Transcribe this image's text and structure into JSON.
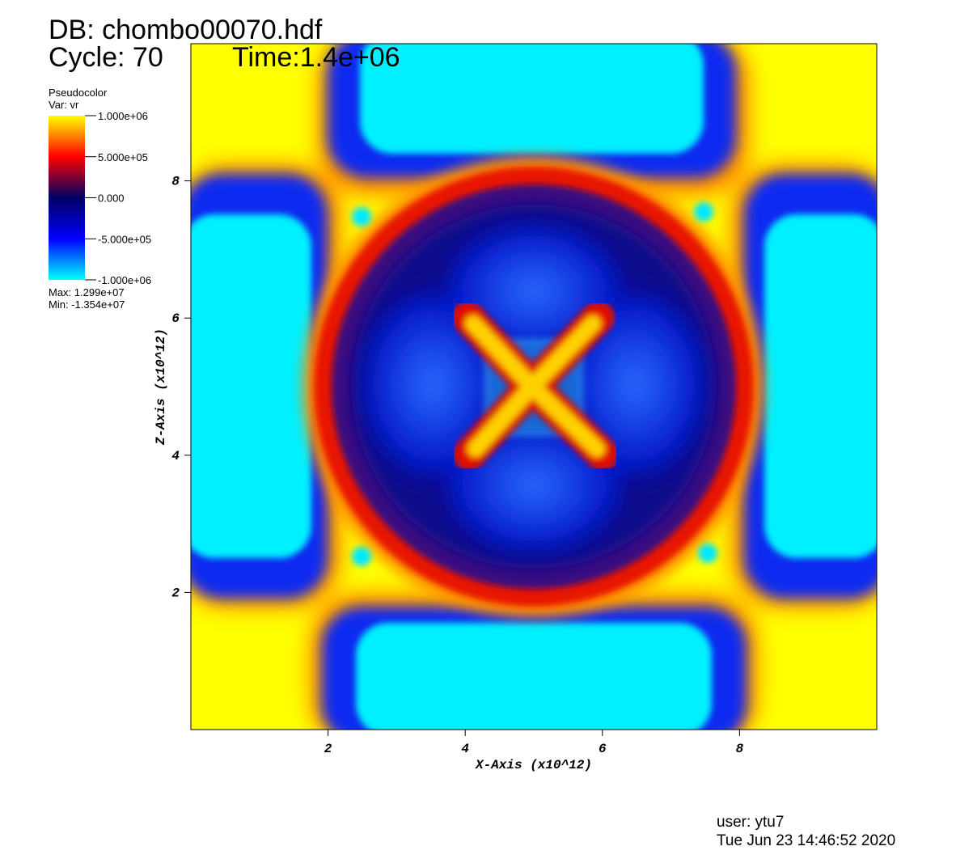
{
  "chart_data": {
    "type": "pseudocolor",
    "title": "DB: chombo00070.hdf",
    "cycle": "Cycle: 70",
    "time": "Time:1.4e+06",
    "legend_title": "Pseudocolor",
    "variable": "Var: vr",
    "colorbar": {
      "lim": [
        -1000000,
        1000000
      ],
      "ticks": [
        {
          "value": 1000000,
          "label": "1.000e+06"
        },
        {
          "value": 500000,
          "label": "5.000e+05"
        },
        {
          "value": 0,
          "label": "0.000"
        },
        {
          "value": -500000,
          "label": "-5.000e+05"
        },
        {
          "value": -1000000,
          "label": "-1.000e+06"
        }
      ],
      "colors": [
        "#00ffff",
        "#0000ff",
        "#000066",
        "#ff0000",
        "#ffff00"
      ]
    },
    "max_label": "Max:  1.299e+07",
    "min_label": "Min: -1.354e+07",
    "xlabel": "X-Axis (x10^12)",
    "ylabel": "Z-Axis (x10^12)",
    "xlim": [
      0,
      10
    ],
    "ylim": [
      0,
      10
    ],
    "xticks": [
      2,
      4,
      6,
      8
    ],
    "yticks": [
      2,
      4,
      6,
      8
    ],
    "user": "user: ytu7",
    "date": "Tue Jun 23 14:46:52 2020"
  }
}
